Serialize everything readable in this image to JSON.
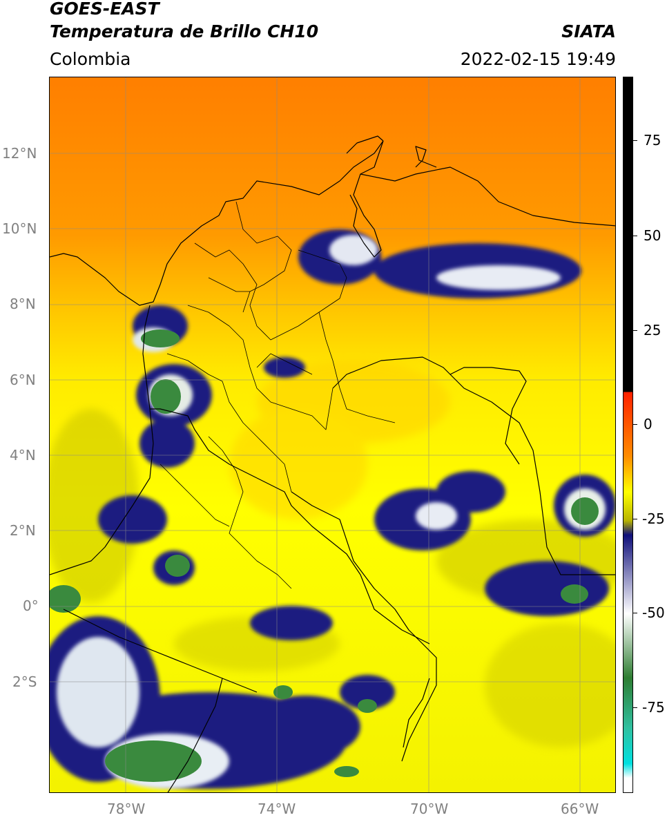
{
  "header": {
    "satellite": "GOES-EAST",
    "product": "Temperatura de Brillo CH10",
    "region": "Colombia",
    "agency": "SIATA",
    "datetime": "2022-02-15 19:49"
  },
  "map": {
    "lat_labels": [
      "12°N",
      "10°N",
      "8°N",
      "6°N",
      "4°N",
      "2°N",
      "0°",
      "2°S"
    ],
    "lon_labels": [
      "78°W",
      "74°W",
      "70°W",
      "66°W"
    ]
  },
  "colorbar": {
    "labels": [
      "75",
      "50",
      "25",
      "0",
      "-25",
      "-50",
      "-75"
    ],
    "colors": {
      "black": "#000000",
      "red": "#ff2000",
      "orange": "#ff8c00",
      "yellow": "#ffff00",
      "olive": "#b8b400",
      "navy": "#10107a",
      "white": "#ffffff",
      "green": "#2e7d32",
      "teal": "#30c0a0",
      "cyan": "#00e0e0"
    }
  }
}
